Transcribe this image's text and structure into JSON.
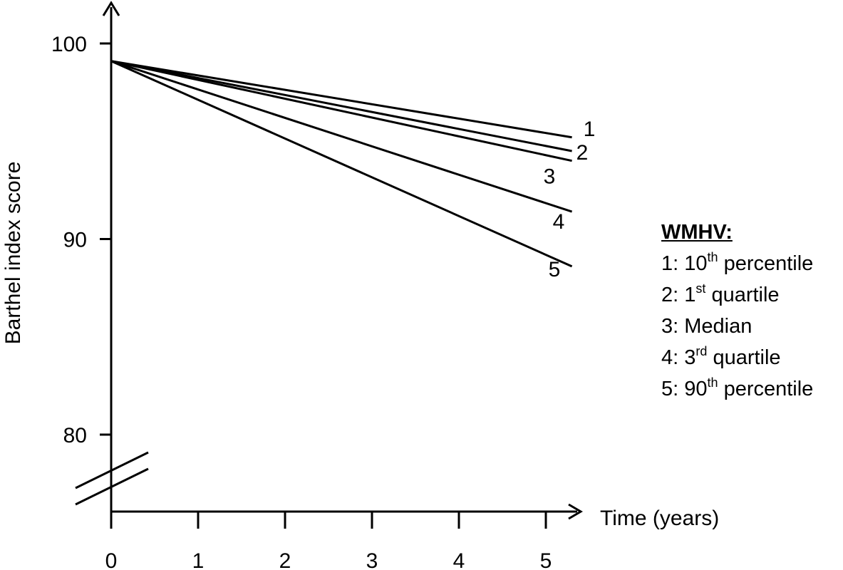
{
  "chart_data": {
    "type": "line",
    "title": "",
    "xlabel": "Time (years)",
    "ylabel": "Barthel index score",
    "xlim": [
      0,
      5.3
    ],
    "ylim": [
      76,
      102
    ],
    "x_ticks": [
      0,
      1,
      2,
      3,
      4,
      5
    ],
    "y_ticks": [
      80,
      90,
      100
    ],
    "axis_break": "y",
    "grid": false,
    "series": [
      {
        "name": "1",
        "x": [
          0,
          5.3
        ],
        "y": [
          99.1,
          95.2
        ]
      },
      {
        "name": "2",
        "x": [
          0,
          5.3
        ],
        "y": [
          99.1,
          94.5
        ]
      },
      {
        "name": "3",
        "x": [
          0,
          5.3
        ],
        "y": [
          99.1,
          94.0
        ]
      },
      {
        "name": "4",
        "x": [
          0,
          5.3
        ],
        "y": [
          99.1,
          91.4
        ]
      },
      {
        "name": "5",
        "x": [
          0,
          5.3
        ],
        "y": [
          99.1,
          88.6
        ]
      }
    ],
    "legend": {
      "title": "WMHV:",
      "placement": "right",
      "entries": [
        {
          "prefix": "1: 10",
          "sup": "th",
          "suffix": " percentile"
        },
        {
          "prefix": "2: 1",
          "sup": "st",
          "suffix": " quartile"
        },
        {
          "prefix": "3: Median",
          "sup": "",
          "suffix": ""
        },
        {
          "prefix": "4: 3",
          "sup": "rd",
          "suffix": " quartile"
        },
        {
          "prefix": "5: 90",
          "sup": "th",
          "suffix": " percentile"
        }
      ]
    }
  }
}
